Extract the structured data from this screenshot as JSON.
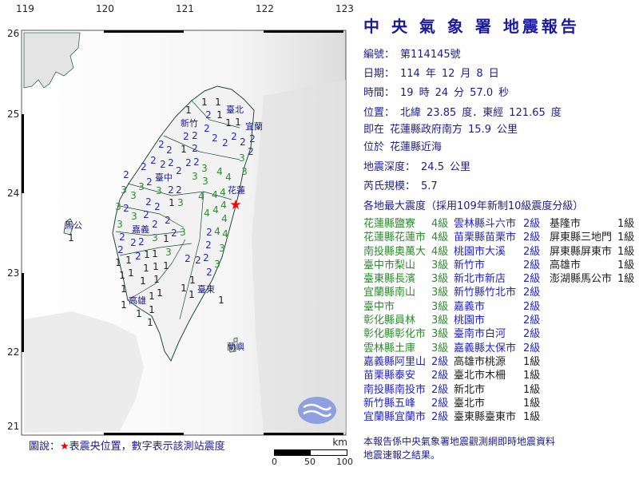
{
  "map": {
    "lon_ticks": [
      "119",
      "120",
      "121",
      "122",
      "123"
    ],
    "lat_ticks": [
      "26",
      "25",
      "24",
      "23",
      "22",
      "21"
    ],
    "epicenter": {
      "lon": 121.65,
      "lat": 23.85,
      "color": "#ff0000"
    },
    "cities": [
      {
        "name": "臺北",
        "lon": 121.64,
        "lat": 25.04
      },
      {
        "name": "新竹",
        "lon": 121.07,
        "lat": 24.87
      },
      {
        "name": "宜蘭",
        "lon": 121.88,
        "lat": 24.83
      },
      {
        "name": "臺中",
        "lon": 120.75,
        "lat": 24.19
      },
      {
        "name": "花蓮",
        "lon": 121.67,
        "lat": 24.02
      },
      {
        "name": "嘉義",
        "lon": 120.46,
        "lat": 23.54
      },
      {
        "name": "馬公",
        "lon": 119.62,
        "lat": 23.59
      },
      {
        "name": "高雄",
        "lon": 120.42,
        "lat": 22.65
      },
      {
        "name": "臺東",
        "lon": 121.28,
        "lat": 22.79
      },
      {
        "name": "蘭嶼",
        "lon": 121.65,
        "lat": 22.07
      }
    ],
    "stations": [
      {
        "i": "1",
        "lon": 121.06,
        "lat": 25.04
      },
      {
        "i": "1",
        "lon": 121.26,
        "lat": 25.14
      },
      {
        "i": "1",
        "lon": 121.43,
        "lat": 25.14
      },
      {
        "i": "1",
        "lon": 121.53,
        "lat": 25.04
      },
      {
        "i": "1",
        "lon": 121.65,
        "lat": 24.99
      },
      {
        "i": "1",
        "lon": 121.54,
        "lat": 24.88
      },
      {
        "i": "2",
        "lon": 121.3,
        "lat": 25.04
      },
      {
        "i": "2",
        "lon": 121.27,
        "lat": 24.93
      },
      {
        "i": "2",
        "lon": 121.0,
        "lat": 24.81
      },
      {
        "i": "2",
        "lon": 121.07,
        "lat": 24.76
      },
      {
        "i": "2",
        "lon": 121.1,
        "lat": 24.63
      },
      {
        "i": "1",
        "lon": 121.0,
        "lat": 24.63
      },
      {
        "i": "2",
        "lon": 121.35,
        "lat": 24.69
      },
      {
        "i": "2",
        "lon": 121.52,
        "lat": 24.63
      },
      {
        "i": "2",
        "lon": 121.63,
        "lat": 24.71
      },
      {
        "i": "2",
        "lon": 121.7,
        "lat": 24.64
      },
      {
        "i": "2",
        "lon": 121.81,
        "lat": 24.81
      },
      {
        "i": "2",
        "lon": 121.84,
        "lat": 24.6
      },
      {
        "i": "3",
        "lon": 121.73,
        "lat": 24.44
      },
      {
        "i": "3",
        "lon": 121.75,
        "lat": 24.33
      },
      {
        "i": "2",
        "lon": 121.15,
        "lat": 24.45
      },
      {
        "i": "2",
        "lon": 121.06,
        "lat": 24.46
      },
      {
        "i": "2",
        "lon": 120.82,
        "lat": 24.54
      },
      {
        "i": "2",
        "lon": 120.81,
        "lat": 24.41
      },
      {
        "i": "2",
        "lon": 120.76,
        "lat": 24.61
      },
      {
        "i": "2",
        "lon": 120.92,
        "lat": 24.28
      },
      {
        "i": "3",
        "lon": 121.22,
        "lat": 24.31
      },
      {
        "i": "3",
        "lon": 121.17,
        "lat": 24.26
      },
      {
        "i": "4",
        "lon": 121.45,
        "lat": 24.27
      },
      {
        "i": "4",
        "lon": 121.6,
        "lat": 24.13
      },
      {
        "i": "4",
        "lon": 121.6,
        "lat": 24.05
      },
      {
        "i": "4",
        "lon": 121.47,
        "lat": 23.98
      },
      {
        "i": "4",
        "lon": 121.61,
        "lat": 23.96
      },
      {
        "i": "4",
        "lon": 121.55,
        "lat": 23.83
      },
      {
        "i": "4",
        "lon": 121.46,
        "lat": 23.81
      },
      {
        "i": "4",
        "lon": 121.22,
        "lat": 23.96
      },
      {
        "i": "3",
        "lon": 121.26,
        "lat": 24.16
      },
      {
        "i": "2",
        "lon": 120.67,
        "lat": 24.16
      },
      {
        "i": "2",
        "lon": 120.5,
        "lat": 24.33
      },
      {
        "i": "2",
        "lon": 120.62,
        "lat": 24.41
      },
      {
        "i": "2",
        "lon": 120.77,
        "lat": 24.31
      },
      {
        "i": "3",
        "lon": 120.5,
        "lat": 24.11
      },
      {
        "i": "3",
        "lon": 120.66,
        "lat": 24.06
      },
      {
        "i": "2",
        "lon": 120.84,
        "lat": 24.06
      },
      {
        "i": "2",
        "lon": 120.92,
        "lat": 24.04
      },
      {
        "i": "3",
        "lon": 120.44,
        "lat": 24.01
      },
      {
        "i": "3",
        "lon": 120.25,
        "lat": 24.04
      },
      {
        "i": "2",
        "lon": 120.28,
        "lat": 24.23
      },
      {
        "i": "2",
        "lon": 120.56,
        "lat": 23.89
      },
      {
        "i": "2",
        "lon": 120.65,
        "lat": 23.83
      },
      {
        "i": "1",
        "lon": 120.84,
        "lat": 23.89
      },
      {
        "i": "3",
        "lon": 120.88,
        "lat": 23.88
      },
      {
        "i": "3",
        "lon": 120.18,
        "lat": 23.83
      },
      {
        "i": "3",
        "lon": 120.38,
        "lat": 23.71
      },
      {
        "i": "2",
        "lon": 120.5,
        "lat": 23.76
      },
      {
        "i": "2",
        "lon": 120.8,
        "lat": 23.66
      },
      {
        "i": "3",
        "lon": 120.2,
        "lat": 23.61
      },
      {
        "i": "2",
        "lon": 120.5,
        "lat": 23.61
      },
      {
        "i": "2",
        "lon": 120.33,
        "lat": 23.64
      },
      {
        "i": "2",
        "lon": 120.22,
        "lat": 23.46
      },
      {
        "i": "3",
        "lon": 120.6,
        "lat": 23.51
      },
      {
        "i": "2",
        "lon": 120.47,
        "lat": 23.41
      },
      {
        "i": "2",
        "lon": 120.87,
        "lat": 23.51
      },
      {
        "i": "2",
        "lon": 120.43,
        "lat": 23.48
      },
      {
        "i": "1",
        "lon": 120.78,
        "lat": 23.43
      },
      {
        "i": "3",
        "lon": 120.97,
        "lat": 23.51
      },
      {
        "i": "2",
        "lon": 120.21,
        "lat": 23.37
      },
      {
        "i": "2",
        "lon": 120.4,
        "lat": 23.31
      },
      {
        "i": "3",
        "lon": 120.78,
        "lat": 23.36
      },
      {
        "i": "2",
        "lon": 121.32,
        "lat": 23.51
      },
      {
        "i": "2",
        "lon": 121.3,
        "lat": 23.36
      },
      {
        "i": "4",
        "lon": 121.42,
        "lat": 23.81
      },
      {
        "i": "4",
        "lon": 121.42,
        "lat": 23.68
      },
      {
        "i": "4",
        "lon": 121.5,
        "lat": 23.49
      },
      {
        "i": "3",
        "lon": 121.48,
        "lat": 23.31
      },
      {
        "i": "2",
        "lon": 121.05,
        "lat": 23.18
      },
      {
        "i": "2",
        "lon": 121.18,
        "lat": 23.16
      },
      {
        "i": "2",
        "lon": 121.28,
        "lat": 23.21
      },
      {
        "i": "2",
        "lon": 121.32,
        "lat": 23.01
      },
      {
        "i": "3",
        "lon": 121.36,
        "lat": 23.11
      },
      {
        "i": "1",
        "lon": 120.18,
        "lat": 23.21
      },
      {
        "i": "1",
        "lon": 120.27,
        "lat": 23.16
      },
      {
        "i": "1",
        "lon": 120.22,
        "lat": 23.03
      },
      {
        "i": "1",
        "lon": 120.33,
        "lat": 23.01
      },
      {
        "i": "1",
        "lon": 120.48,
        "lat": 23.23
      },
      {
        "i": "1",
        "lon": 120.51,
        "lat": 23.18
      },
      {
        "i": "1",
        "lon": 120.6,
        "lat": 23.24
      },
      {
        "i": "1",
        "lon": 120.76,
        "lat": 23.21
      },
      {
        "i": "1",
        "lon": 120.57,
        "lat": 23.08
      },
      {
        "i": "1",
        "lon": 120.62,
        "lat": 22.99
      },
      {
        "i": "1",
        "lon": 120.24,
        "lat": 22.86
      },
      {
        "i": "1",
        "lon": 120.48,
        "lat": 22.91
      },
      {
        "i": "1",
        "lon": 120.48,
        "lat": 22.71
      },
      {
        "i": "1",
        "lon": 120.62,
        "lat": 22.75
      },
      {
        "i": "1",
        "lon": 120.55,
        "lat": 22.58
      },
      {
        "i": "1",
        "lon": 120.44,
        "lat": 22.49
      },
      {
        "i": "1",
        "lon": 120.55,
        "lat": 22.48
      },
      {
        "i": "1",
        "lon": 120.28,
        "lat": 22.63
      },
      {
        "i": "1",
        "lon": 121.11,
        "lat": 22.91
      },
      {
        "i": "1",
        "lon": 121.06,
        "lat": 22.83
      },
      {
        "i": "1",
        "lon": 121.13,
        "lat": 22.76
      },
      {
        "i": "1",
        "lon": 121.47,
        "lat": 22.66
      },
      {
        "i": "1",
        "lon": 119.56,
        "lat": 23.54
      }
    ],
    "intensity_colors": {
      "1": "#222222",
      "2": "#2323d0",
      "3": "#2e8b2e",
      "4": "#2e8b2e"
    }
  },
  "report": {
    "title": "中 央 氣 象 署 地震報告",
    "number_label": "編號：",
    "number": "第114145號",
    "date_label": "日期：",
    "date": [
      "114",
      "年",
      "12",
      "月",
      "8",
      "日"
    ],
    "time_label": "時間：",
    "time": [
      "19",
      "時",
      "24",
      "分",
      "57.0",
      "秒"
    ],
    "location_label": "位置：",
    "location": [
      "北緯",
      "23.85",
      "度．東經",
      "121.65",
      "度"
    ],
    "relative_label": "即在",
    "relative": [
      "花蓮縣政府南方",
      "15.9",
      "公里"
    ],
    "area_label": "位於",
    "area": "花蓮縣近海",
    "depth_label": "地震深度：",
    "depth": [
      "24.5",
      "公里"
    ],
    "magnitude_label": "芮氏規模：",
    "magnitude": "5.7",
    "intensity_heading": "各地最大震度（採用109年新制10級震度分級）"
  },
  "intensity_table": [
    [
      {
        "name": "花蓮縣鹽寮",
        "level": "4級"
      },
      {
        "name": "花蓮縣花蓮市",
        "level": "4級"
      },
      {
        "name": "南投縣奧萬大",
        "level": "4級"
      },
      {
        "name": "臺中市梨山",
        "level": "3級"
      },
      {
        "name": "臺東縣長濱",
        "level": "3級"
      },
      {
        "name": "宜蘭縣南山",
        "level": "3級"
      },
      {
        "name": "臺中市",
        "level": "3級"
      },
      {
        "name": "彰化縣員林",
        "level": "3級"
      },
      {
        "name": "彰化縣彰化市",
        "level": "3級"
      },
      {
        "name": "雲林縣土庫",
        "level": "3級"
      },
      {
        "name": "嘉義縣阿里山",
        "level": "2級"
      },
      {
        "name": "苗栗縣泰安",
        "level": "2級"
      },
      {
        "name": "南投縣南投市",
        "level": "2級"
      },
      {
        "name": "新竹縣五峰",
        "level": "2級"
      },
      {
        "name": "宜蘭縣宜蘭市",
        "level": "2級"
      }
    ],
    [
      {
        "name": "雲林縣斗六市",
        "level": "2級"
      },
      {
        "name": "苗栗縣苗栗市",
        "level": "2級"
      },
      {
        "name": "桃園市大溪",
        "level": "2級"
      },
      {
        "name": "新竹市",
        "level": "2級"
      },
      {
        "name": "新北市新店",
        "level": "2級"
      },
      {
        "name": "新竹縣竹北市",
        "level": "2級"
      },
      {
        "name": "嘉義市",
        "level": "2級"
      },
      {
        "name": "桃園市",
        "level": "2級"
      },
      {
        "name": "臺南市白河",
        "level": "2級"
      },
      {
        "name": "嘉義縣太保市",
        "level": "2級"
      },
      {
        "name": "高雄市桃源",
        "level": "1級"
      },
      {
        "name": "臺北市木柵",
        "level": "1級"
      },
      {
        "name": "新北市",
        "level": "1級"
      },
      {
        "name": "臺北市",
        "level": "1級"
      },
      {
        "name": "臺東縣臺東市",
        "level": "1級"
      }
    ],
    [
      {
        "name": "基隆市",
        "level": "1級"
      },
      {
        "name": "屏東縣三地門",
        "level": "1級"
      },
      {
        "name": "屏東縣屏東市",
        "level": "1級"
      },
      {
        "name": "高雄市",
        "level": "1級"
      },
      {
        "name": "澎湖縣馬公市",
        "level": "1級"
      }
    ]
  ],
  "level_colors": {
    "4級": "#2e8b2e",
    "3級": "#2e8b2e",
    "2級": "#2323d0",
    "1級": "#222222"
  },
  "legend": {
    "prefix": "圖說：",
    "star": "★",
    "text": "表震央位置，數字表示該測站震度"
  },
  "scale_bar": {
    "unit": "km",
    "labels": [
      "0",
      "50",
      "100"
    ]
  },
  "footer_note": [
    "本報告係中央氣象署地震觀測網即時地震資料",
    "地震速報之結果。"
  ],
  "logo_icon": "cwa-logo-icon"
}
